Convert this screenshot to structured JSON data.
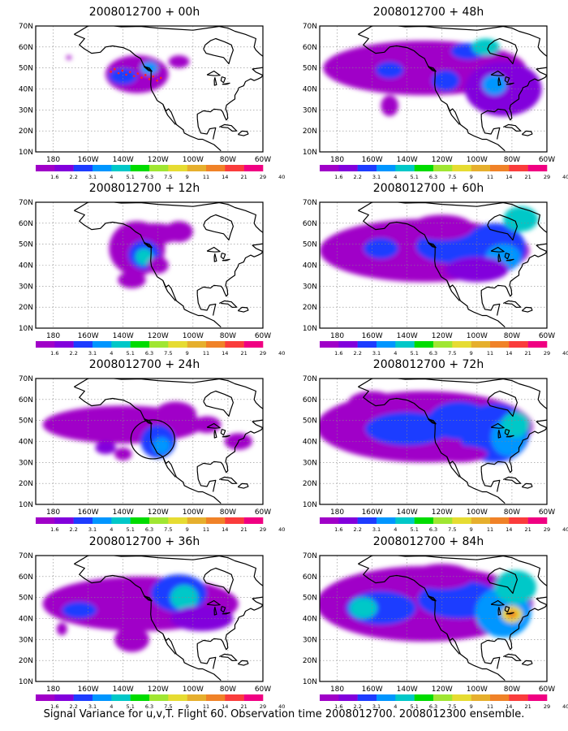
{
  "panels": [
    {
      "title": "2008012700 + 00h",
      "level": 0
    },
    {
      "title": "2008012700 + 12h",
      "level": 1
    },
    {
      "title": "2008012700 + 24h",
      "level": 2
    },
    {
      "title": "2008012700 + 36h",
      "level": 3
    },
    {
      "title": "2008012700 + 48h",
      "level": 4
    },
    {
      "title": "2008012700 + 60h",
      "level": 5
    },
    {
      "title": "2008012700 + 72h",
      "level": 6
    },
    {
      "title": "2008012700 + 84h",
      "level": 7
    }
  ],
  "lat_labels": [
    "70N",
    "60N",
    "50N",
    "40N",
    "30N",
    "20N",
    "10N"
  ],
  "lon_labels": [
    "180",
    "160W",
    "140W",
    "120W",
    "100W",
    "80W",
    "60W"
  ],
  "colorbar": {
    "colors": [
      "#a000c8",
      "#8200dc",
      "#1e3cff",
      "#0096ff",
      "#00c8c8",
      "#00dc00",
      "#a0e632",
      "#e6dc32",
      "#e6af2d",
      "#f08228",
      "#fa3c3c",
      "#f00082"
    ],
    "labels": [
      "1.6",
      "2.2",
      "3.1",
      "4",
      "5.1",
      "6.3",
      "7.5",
      "9",
      "11",
      "14",
      "21",
      "29",
      "40"
    ]
  },
  "footer": "Signal Variance for u,v,T. Flight 60. Observation time 2008012700. 2008012300 ensemble."
}
